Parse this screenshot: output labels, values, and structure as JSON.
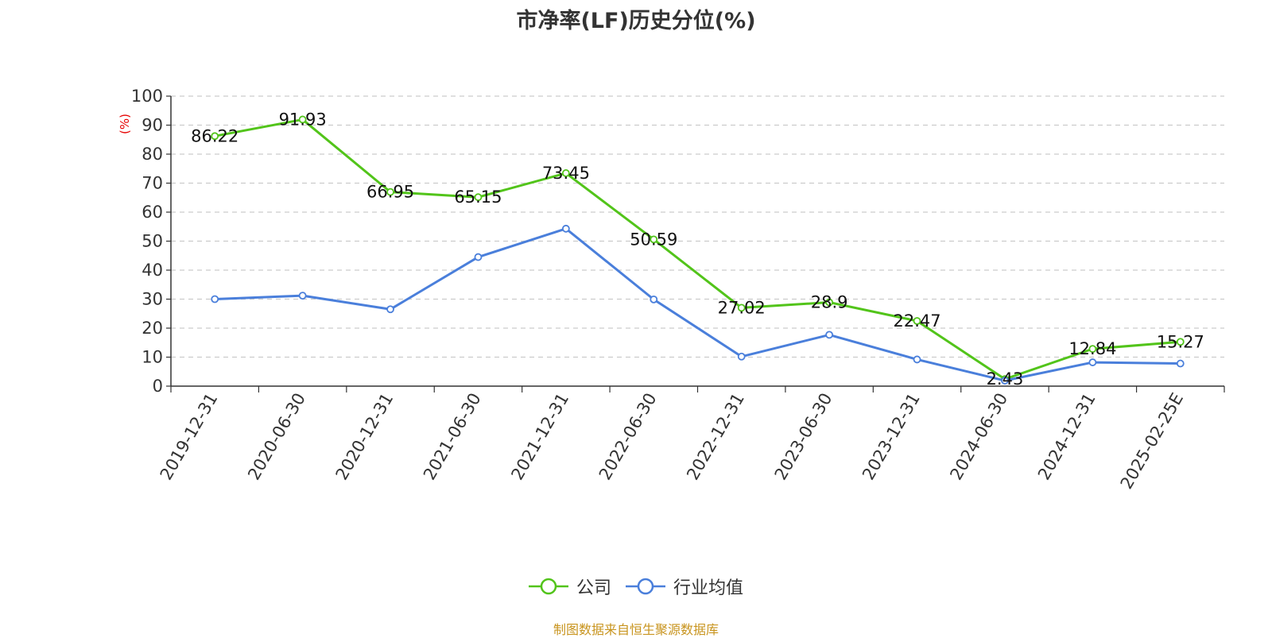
{
  "title": "市净率(LF)历史分位(%)",
  "footer": "制图数据来自恒生聚源数据库",
  "colors": {
    "company": "#52c41a",
    "industry": "#4a7fdb",
    "ylabel": "#e60000",
    "footer": "#c8941e",
    "axis": "#333333",
    "grid": "#cccccc"
  },
  "legend": [
    {
      "label": "公司"
    },
    {
      "label": "行业均值"
    }
  ],
  "chart_data": {
    "type": "line",
    "title": "市净率(LF)历史分位(%)",
    "xlabel": "",
    "ylabel": "(%)",
    "ylim": [
      0,
      100
    ],
    "yticks": [
      0,
      10,
      20,
      30,
      40,
      50,
      60,
      70,
      80,
      90,
      100
    ],
    "grid": true,
    "legend_position": "bottom",
    "categories": [
      "2019-12-31",
      "2020-06-30",
      "2020-12-31",
      "2021-06-30",
      "2021-12-31",
      "2022-06-30",
      "2022-12-31",
      "2023-06-30",
      "2023-12-31",
      "2024-06-30",
      "2024-12-31",
      "2025-02-25E"
    ],
    "series": [
      {
        "name": "公司",
        "values": [
          86.22,
          91.93,
          66.95,
          65.15,
          73.45,
          50.59,
          27.02,
          28.9,
          22.47,
          2.43,
          12.84,
          15.27
        ],
        "labels": [
          "86.22",
          "91.93",
          "66.95",
          "65.15",
          "73.45",
          "50.59",
          "27.02",
          "28.9",
          "22.47",
          "2.43",
          "12.84",
          "15.27"
        ]
      },
      {
        "name": "行业均值",
        "values": [
          30.0,
          31.2,
          26.5,
          44.5,
          54.3,
          29.9,
          10.2,
          17.7,
          9.2,
          1.9,
          8.2,
          7.8
        ]
      }
    ]
  }
}
